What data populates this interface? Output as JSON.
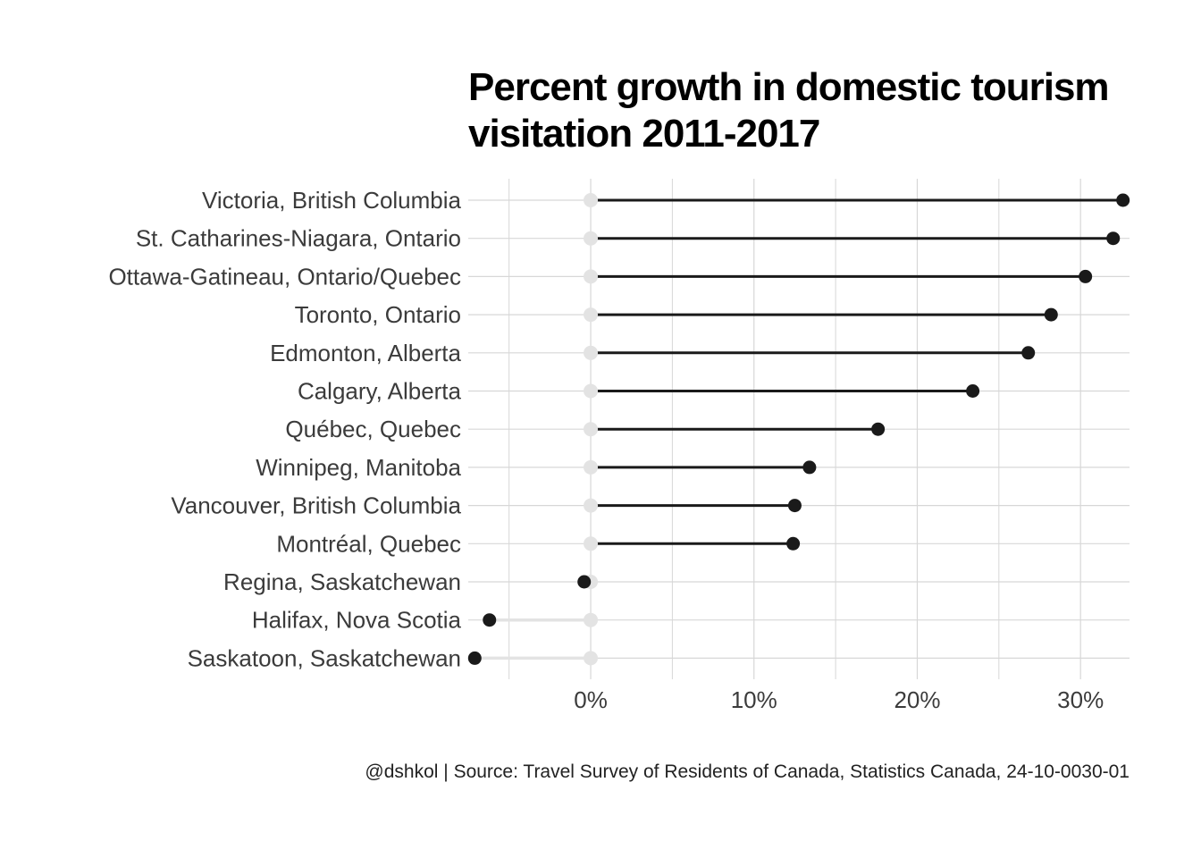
{
  "chart_data": {
    "type": "lollipop",
    "title": "Percent growth in domestic tourism visitation 2011-2017",
    "caption": "@dshkol | Source: Travel Survey of Residents of Canada, Statistics Canada, 24-10-0030-01",
    "xlabel": "",
    "ylabel": "",
    "x_tick_labels": [
      "0%",
      "10%",
      "20%",
      "30%"
    ],
    "x_ticks": [
      0,
      10,
      20,
      30
    ],
    "xlim": [
      -7.5,
      33
    ],
    "grid": true,
    "baseline": 0,
    "categories": [
      "Victoria, British Columbia",
      "St. Catharines-Niagara, Ontario",
      "Ottawa-Gatineau, Ontario/Quebec",
      "Toronto, Ontario",
      "Edmonton, Alberta",
      "Calgary, Alberta",
      "Québec, Quebec",
      "Winnipeg, Manitoba",
      "Vancouver, British Columbia",
      "Montréal, Quebec",
      "Regina, Saskatchewan",
      "Halifax, Nova Scotia",
      "Saskatoon, Saskatchewan"
    ],
    "values": [
      32.6,
      32.0,
      30.3,
      28.2,
      26.8,
      23.4,
      17.6,
      13.4,
      12.5,
      12.4,
      -0.4,
      -6.2,
      -7.1
    ],
    "colors": {
      "positive_segment": "#1a1a1a",
      "negative_segment": "#e3e3e3",
      "point": "#1a1a1a",
      "baseline_point": "#e3e3e3",
      "grid": "#d7d7d7"
    }
  }
}
